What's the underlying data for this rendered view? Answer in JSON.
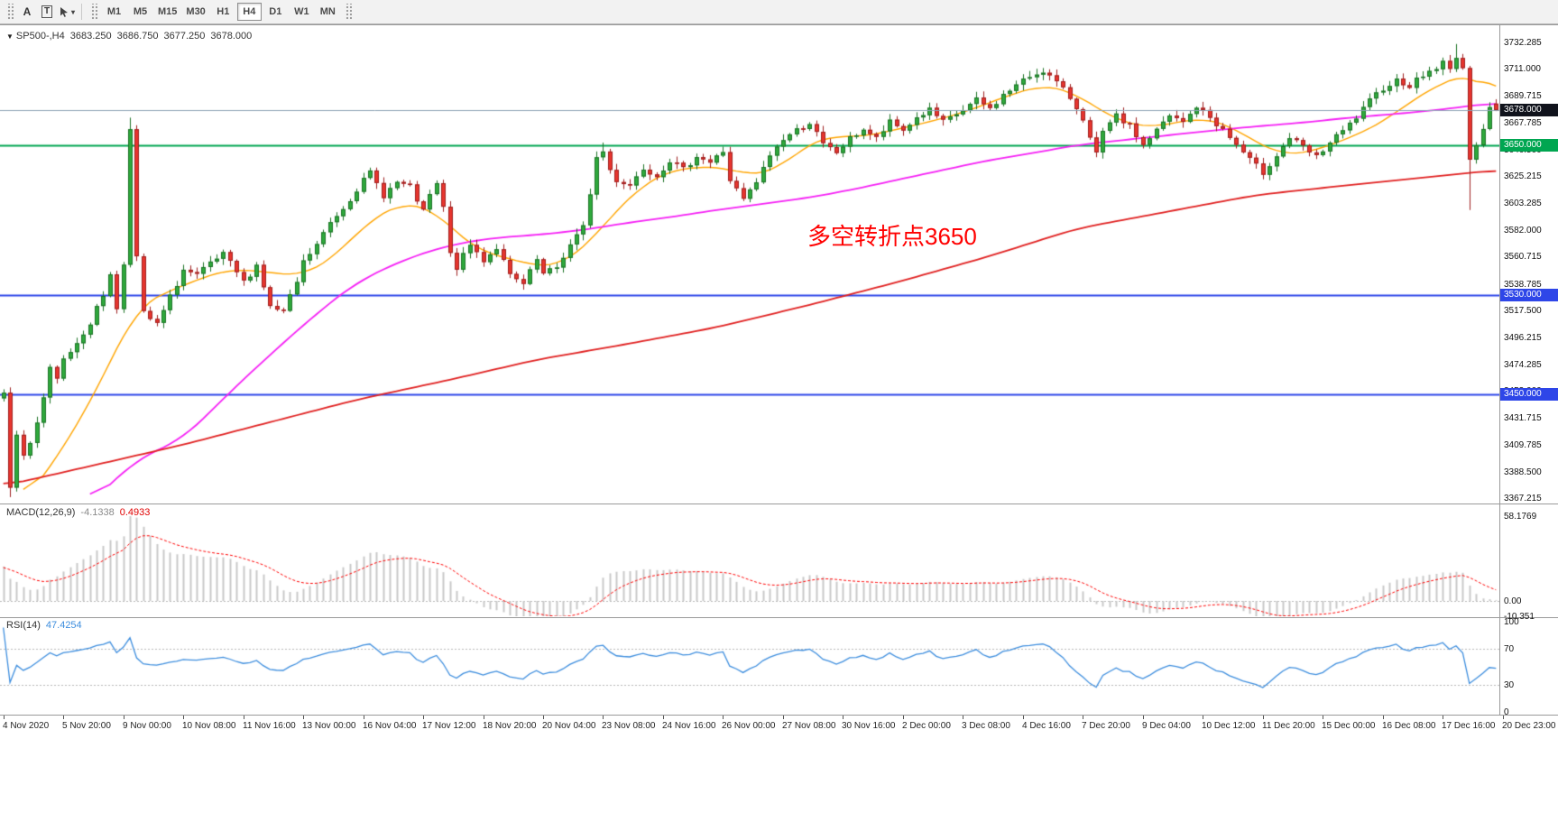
{
  "toolbar": {
    "label_tool": "A",
    "textbox_tool": "T",
    "caret_glyph": "▾",
    "timeframes": [
      {
        "label": "M1",
        "active": false
      },
      {
        "label": "M5",
        "active": false
      },
      {
        "label": "M15",
        "active": false
      },
      {
        "label": "M30",
        "active": false
      },
      {
        "label": "H1",
        "active": false
      },
      {
        "label": "H4",
        "active": true
      },
      {
        "label": "D1",
        "active": false
      },
      {
        "label": "W1",
        "active": false
      },
      {
        "label": "MN",
        "active": false
      }
    ]
  },
  "main_header": {
    "collapse_glyph": "▼",
    "symbol_period": "SP500-,H4",
    "open": "3683.250",
    "high": "3686.750",
    "low": "3677.250",
    "close": "3678.000"
  },
  "indicators": {
    "macd_label": "MACD(12,26,9)",
    "macd_value": "-4.1338",
    "macd_signal_value": "0.4933",
    "rsi_label": "RSI(14)",
    "rsi_value": "47.4254"
  },
  "chart_data": {
    "type": "candlestick",
    "symbol": "SP500-",
    "period": "H4",
    "bars": 225,
    "seed": 7,
    "y_axis": {
      "labels": [
        "3732.285",
        "3711.000",
        "3689.715",
        "3667.785",
        "3646.500",
        "3625.215",
        "3603.285",
        "3582.000",
        "3560.715",
        "3538.785",
        "3517.500",
        "3496.215",
        "3474.285",
        "3453.000",
        "3431.715",
        "3409.785",
        "3388.500",
        "3367.215"
      ],
      "scale_top": 3744.57,
      "scale_bottom": 3363.6
    },
    "x_axis": {
      "bars_per_label": 9,
      "labels": [
        "4 Nov 2020",
        "5 Nov 20:00",
        "9 Nov 00:00",
        "10 Nov 08:00",
        "11 Nov 16:00",
        "13 Nov 00:00",
        "16 Nov 04:00",
        "17 Nov 12:00",
        "18 Nov 20:00",
        "20 Nov 04:00",
        "23 Nov 08:00",
        "24 Nov 16:00",
        "26 Nov 00:00",
        "27 Nov 08:00",
        "30 Nov 16:00",
        "2 Dec 00:00",
        "3 Dec 08:00",
        "4 Dec 16:00",
        "7 Dec 20:00",
        "9 Dec 04:00",
        "10 Dec 12:00",
        "11 Dec 20:00",
        "15 Dec 00:00",
        "16 Dec 08:00",
        "17 Dec 16:00",
        "20 Dec 23:00"
      ]
    },
    "last_candle": {
      "open": 3683.25,
      "high": 3686.75,
      "low": 3677.25,
      "close": 3678.0
    },
    "bid_line": {
      "price": 3678.0,
      "label": "3678.000",
      "color": "#8CA3B5",
      "badge_bg": "#10131C",
      "width": 1
    },
    "horizontal_lines": [
      {
        "price": 3650.0,
        "label": "3650.000",
        "color": "#00A651",
        "width": 2
      },
      {
        "price": 3530.0,
        "label": "3530.000",
        "color": "#2E46E8",
        "width": 2
      },
      {
        "price": 3450.0,
        "label": "3450.000",
        "color": "#2E46E8",
        "width": 2
      }
    ],
    "annotation": {
      "text": "多空转折点3650",
      "color": "#FF0000",
      "x": 895,
      "y": 214
    },
    "warmup": {
      "bars": 40,
      "start": 3345,
      "end": 3448
    },
    "wick_overrides": [
      {
        "bar": 1,
        "low": 3368
      },
      {
        "bar": 19,
        "high": 3672
      },
      {
        "bar": 90,
        "high": 3652
      },
      {
        "bar": 218,
        "high": 3731
      },
      {
        "bar": 220,
        "low": 3598
      }
    ],
    "price_keypoints": [
      [
        0,
        3452
      ],
      [
        1,
        3378
      ],
      [
        2,
        3420
      ],
      [
        3,
        3400
      ],
      [
        4,
        3412
      ],
      [
        5,
        3428
      ],
      [
        6,
        3448
      ],
      [
        7,
        3470
      ],
      [
        8,
        3462
      ],
      [
        9,
        3478
      ],
      [
        11,
        3492
      ],
      [
        13,
        3508
      ],
      [
        15,
        3530
      ],
      [
        16,
        3548
      ],
      [
        17,
        3518
      ],
      [
        18,
        3555
      ],
      [
        19,
        3665
      ],
      [
        20,
        3560
      ],
      [
        21,
        3515
      ],
      [
        23,
        3506
      ],
      [
        25,
        3528
      ],
      [
        27,
        3550
      ],
      [
        29,
        3545
      ],
      [
        31,
        3555
      ],
      [
        33,
        3562
      ],
      [
        35,
        3548
      ],
      [
        36,
        3540
      ],
      [
        38,
        3554
      ],
      [
        40,
        3520
      ],
      [
        42,
        3516
      ],
      [
        44,
        3540
      ],
      [
        45,
        3556
      ],
      [
        47,
        3570
      ],
      [
        49,
        3588
      ],
      [
        51,
        3600
      ],
      [
        53,
        3615
      ],
      [
        55,
        3628
      ],
      [
        57,
        3610
      ],
      [
        59,
        3620
      ],
      [
        61,
        3616
      ],
      [
        63,
        3596
      ],
      [
        64,
        3610
      ],
      [
        65,
        3618
      ],
      [
        66,
        3600
      ],
      [
        67,
        3562
      ],
      [
        68,
        3552
      ],
      [
        70,
        3570
      ],
      [
        72,
        3558
      ],
      [
        74,
        3568
      ],
      [
        76,
        3545
      ],
      [
        78,
        3538
      ],
      [
        80,
        3558
      ],
      [
        81,
        3546
      ],
      [
        83,
        3552
      ],
      [
        85,
        3570
      ],
      [
        87,
        3584
      ],
      [
        89,
        3640
      ],
      [
        90,
        3645
      ],
      [
        91,
        3630
      ],
      [
        92,
        3622
      ],
      [
        94,
        3618
      ],
      [
        96,
        3632
      ],
      [
        98,
        3626
      ],
      [
        100,
        3638
      ],
      [
        102,
        3630
      ],
      [
        104,
        3642
      ],
      [
        106,
        3636
      ],
      [
        108,
        3645
      ],
      [
        109,
        3622
      ],
      [
        111,
        3606
      ],
      [
        113,
        3620
      ],
      [
        115,
        3642
      ],
      [
        117,
        3655
      ],
      [
        119,
        3662
      ],
      [
        121,
        3668
      ],
      [
        123,
        3650
      ],
      [
        125,
        3644
      ],
      [
        127,
        3655
      ],
      [
        129,
        3663
      ],
      [
        131,
        3655
      ],
      [
        133,
        3668
      ],
      [
        135,
        3662
      ],
      [
        137,
        3672
      ],
      [
        139,
        3678
      ],
      [
        141,
        3668
      ],
      [
        144,
        3678
      ],
      [
        146,
        3686
      ],
      [
        148,
        3679
      ],
      [
        150,
        3690
      ],
      [
        152,
        3698
      ],
      [
        154,
        3705
      ],
      [
        156,
        3710
      ],
      [
        158,
        3700
      ],
      [
        160,
        3688
      ],
      [
        162,
        3672
      ],
      [
        163,
        3655
      ],
      [
        164,
        3642
      ],
      [
        165,
        3660
      ],
      [
        167,
        3673
      ],
      [
        169,
        3665
      ],
      [
        171,
        3650
      ],
      [
        173,
        3662
      ],
      [
        175,
        3673
      ],
      [
        177,
        3668
      ],
      [
        179,
        3681
      ],
      [
        181,
        3672
      ],
      [
        183,
        3662
      ],
      [
        185,
        3650
      ],
      [
        187,
        3638
      ],
      [
        189,
        3628
      ],
      [
        191,
        3642
      ],
      [
        193,
        3656
      ],
      [
        195,
        3648
      ],
      [
        197,
        3640
      ],
      [
        199,
        3652
      ],
      [
        201,
        3661
      ],
      [
        203,
        3672
      ],
      [
        205,
        3685
      ],
      [
        207,
        3696
      ],
      [
        209,
        3702
      ],
      [
        211,
        3698
      ],
      [
        213,
        3706
      ],
      [
        215,
        3712
      ],
      [
        216,
        3716
      ],
      [
        217,
        3710
      ],
      [
        218,
        3722
      ],
      [
        219,
        3712
      ],
      [
        220,
        3636
      ],
      [
        221,
        3652
      ],
      [
        222,
        3665
      ],
      [
        223,
        3681
      ],
      [
        224,
        3678
      ]
    ],
    "candle_colors": {
      "up": "#2FA93C",
      "up_border": "#1C7326",
      "down": "#E8352E",
      "down_border": "#9E1F1F"
    },
    "moving_averages": [
      {
        "name": "ma-fast",
        "color": "#FFA500",
        "width": 1.4,
        "points": [
          [
            3,
            3363
          ],
          [
            10,
            3415
          ],
          [
            16,
            3475
          ],
          [
            20,
            3520
          ],
          [
            24,
            3531
          ],
          [
            28,
            3540
          ],
          [
            34,
            3551
          ],
          [
            40,
            3548
          ],
          [
            45,
            3545
          ],
          [
            50,
            3562
          ],
          [
            55,
            3590
          ],
          [
            60,
            3604
          ],
          [
            64,
            3600
          ],
          [
            68,
            3580
          ],
          [
            72,
            3563
          ],
          [
            76,
            3560
          ],
          [
            80,
            3552
          ],
          [
            84,
            3555
          ],
          [
            88,
            3572
          ],
          [
            92,
            3598
          ],
          [
            96,
            3618
          ],
          [
            100,
            3630
          ],
          [
            104,
            3632
          ],
          [
            108,
            3633
          ],
          [
            112,
            3625
          ],
          [
            116,
            3630
          ],
          [
            120,
            3648
          ],
          [
            124,
            3658
          ],
          [
            128,
            3656
          ],
          [
            132,
            3660
          ],
          [
            136,
            3665
          ],
          [
            140,
            3670
          ],
          [
            144,
            3676
          ],
          [
            148,
            3684
          ],
          [
            152,
            3692
          ],
          [
            156,
            3698
          ],
          [
            160,
            3694
          ],
          [
            164,
            3680
          ],
          [
            168,
            3668
          ],
          [
            172,
            3664
          ],
          [
            176,
            3668
          ],
          [
            180,
            3672
          ],
          [
            184,
            3666
          ],
          [
            188,
            3652
          ],
          [
            192,
            3642
          ],
          [
            196,
            3644
          ],
          [
            200,
            3652
          ],
          [
            204,
            3660
          ],
          [
            208,
            3672
          ],
          [
            212,
            3688
          ],
          [
            216,
            3700
          ],
          [
            220,
            3708
          ],
          [
            222,
            3700
          ],
          [
            224,
            3690
          ]
        ]
      },
      {
        "name": "ma-mid",
        "color": "#F520F5",
        "width": 1.8,
        "points": [
          [
            13,
            3363
          ],
          [
            20,
            3398
          ],
          [
            27,
            3415
          ],
          [
            34,
            3452
          ],
          [
            40,
            3482
          ],
          [
            47,
            3515
          ],
          [
            53,
            3540
          ],
          [
            60,
            3558
          ],
          [
            67,
            3570
          ],
          [
            74,
            3576
          ],
          [
            80,
            3578
          ],
          [
            87,
            3582
          ],
          [
            94,
            3588
          ],
          [
            101,
            3593
          ],
          [
            107,
            3598
          ],
          [
            114,
            3603
          ],
          [
            121,
            3608
          ],
          [
            128,
            3615
          ],
          [
            134,
            3622
          ],
          [
            141,
            3630
          ],
          [
            148,
            3638
          ],
          [
            155,
            3644
          ],
          [
            161,
            3650
          ],
          [
            168,
            3654
          ],
          [
            175,
            3658
          ],
          [
            182,
            3662
          ],
          [
            188,
            3665
          ],
          [
            195,
            3668
          ],
          [
            202,
            3672
          ],
          [
            209,
            3675
          ],
          [
            215,
            3678
          ],
          [
            224,
            3684
          ]
        ]
      },
      {
        "name": "ma-slow",
        "color": "#E02020",
        "width": 1.8,
        "points": [
          [
            0,
            3377
          ],
          [
            14,
            3394
          ],
          [
            27,
            3410
          ],
          [
            40,
            3428
          ],
          [
            53,
            3446
          ],
          [
            67,
            3462
          ],
          [
            80,
            3478
          ],
          [
            94,
            3491
          ],
          [
            107,
            3504
          ],
          [
            121,
            3522
          ],
          [
            134,
            3540
          ],
          [
            148,
            3561
          ],
          [
            161,
            3583
          ],
          [
            175,
            3597
          ],
          [
            188,
            3610
          ],
          [
            202,
            3618
          ],
          [
            215,
            3625
          ],
          [
            224,
            3630
          ]
        ]
      }
    ],
    "macd": {
      "fast": 12,
      "slow": 26,
      "signal": 9,
      "axis_max": 58.1769,
      "y_range": [
        -10.53,
        66.22
      ],
      "hist_color": "#C9C9C9",
      "signal_color": "#FF0000",
      "axis_labels": [
        {
          "text": "58.1769",
          "value": 58.1769
        },
        {
          "text": "0.00",
          "value": 0
        },
        {
          "text": "-10.351",
          "value": -10.351
        }
      ]
    },
    "rsi": {
      "period": 14,
      "color": "#3E8EDE",
      "levels": [
        70,
        30
      ],
      "y_range": [
        -1.5,
        103.5
      ],
      "axis_labels": [
        {
          "text": "100",
          "value": 100
        },
        {
          "text": "70",
          "value": 70
        },
        {
          "text": "30",
          "value": 30
        },
        {
          "text": "0",
          "value": 0
        }
      ]
    }
  }
}
